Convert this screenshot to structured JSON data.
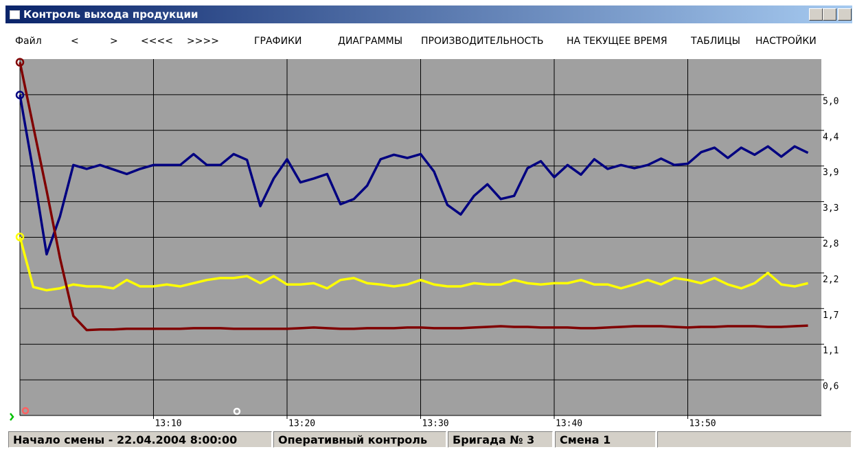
{
  "window": {
    "title": "Контроль выхода продукции"
  },
  "menu": [
    "Файл",
    "<",
    ">",
    "<<<<",
    ">>>>",
    "ГРАФИКИ",
    "ДИАГРАММЫ",
    "ПРОИЗВОДИТЕЛЬНОСТЬ",
    "НА ТЕКУЩЕЕ ВРЕМЯ",
    "ТАБЛИЦЫ",
    "НАСТРОЙКИ"
  ],
  "status": [
    "Начало смены - 22.04.2004 8:00:00",
    "Оперативный контроль",
    "Бригада № 3",
    "Смена 1"
  ],
  "chart_data": {
    "type": "line",
    "grid": true,
    "x": [
      0,
      1,
      2,
      3,
      4,
      5,
      6,
      7,
      8,
      9,
      10,
      11,
      12,
      13,
      14,
      15,
      16,
      17,
      18,
      19,
      20,
      21,
      22,
      23,
      24,
      25,
      26,
      27,
      28,
      29,
      30,
      31,
      32,
      33,
      34,
      35,
      36,
      37,
      38,
      39,
      40,
      41,
      42,
      43,
      44,
      45,
      46,
      47,
      48,
      49,
      50,
      51,
      52,
      53,
      54,
      55,
      56,
      57,
      58,
      59
    ],
    "xlim": [
      0,
      60
    ],
    "xticks": [
      {
        "value": 10,
        "label": "13:10"
      },
      {
        "value": 20,
        "label": "13:20"
      },
      {
        "value": 30,
        "label": "13:30"
      },
      {
        "value": 40,
        "label": "13:40"
      },
      {
        "value": 50,
        "label": "13:50"
      }
    ],
    "ylim": [
      0,
      5.55
    ],
    "yticks": [
      {
        "value": 0.555,
        "label": "0,6"
      },
      {
        "value": 1.11,
        "label": "1,1"
      },
      {
        "value": 1.665,
        "label": "1,7"
      },
      {
        "value": 2.22,
        "label": "2,2"
      },
      {
        "value": 2.775,
        "label": "2,8"
      },
      {
        "value": 3.33,
        "label": "3,3"
      },
      {
        "value": 3.885,
        "label": "3,9"
      },
      {
        "value": 4.44,
        "label": "4,4"
      },
      {
        "value": 4.995,
        "label": "5,0"
      }
    ],
    "series": [
      {
        "color": "#000080",
        "values": [
          4.99,
          3.8,
          2.51,
          3.1,
          3.9,
          3.84,
          3.9,
          3.83,
          3.76,
          3.84,
          3.9,
          3.9,
          3.9,
          4.07,
          3.9,
          3.9,
          4.07,
          3.98,
          3.26,
          3.69,
          3.99,
          3.63,
          3.69,
          3.76,
          3.29,
          3.37,
          3.58,
          3.99,
          4.06,
          4.01,
          4.07,
          3.8,
          3.28,
          3.13,
          3.42,
          3.6,
          3.37,
          3.42,
          3.85,
          3.96,
          3.71,
          3.9,
          3.75,
          3.99,
          3.84,
          3.9,
          3.85,
          3.9,
          4.0,
          3.9,
          3.92,
          4.1,
          4.17,
          4.01,
          4.17,
          4.06,
          4.19,
          4.03,
          4.19,
          4.09
        ]
      },
      {
        "color": "#ffff00",
        "values": [
          2.78,
          2.0,
          1.95,
          1.98,
          2.04,
          2.01,
          2.01,
          1.98,
          2.11,
          2.01,
          2.01,
          2.04,
          2.01,
          2.06,
          2.11,
          2.14,
          2.14,
          2.17,
          2.06,
          2.17,
          2.04,
          2.04,
          2.06,
          1.98,
          2.11,
          2.14,
          2.06,
          2.04,
          2.01,
          2.04,
          2.11,
          2.04,
          2.01,
          2.01,
          2.06,
          2.04,
          2.04,
          2.11,
          2.06,
          2.04,
          2.06,
          2.06,
          2.11,
          2.04,
          2.04,
          1.98,
          2.04,
          2.11,
          2.04,
          2.14,
          2.11,
          2.06,
          2.14,
          2.04,
          1.98,
          2.06,
          2.22,
          2.04,
          2.01,
          2.06
        ]
      },
      {
        "color": "#800000",
        "values": [
          5.5,
          4.5,
          3.5,
          2.45,
          1.55,
          1.33,
          1.34,
          1.34,
          1.35,
          1.35,
          1.35,
          1.35,
          1.35,
          1.36,
          1.36,
          1.36,
          1.35,
          1.35,
          1.35,
          1.35,
          1.35,
          1.36,
          1.37,
          1.36,
          1.35,
          1.35,
          1.36,
          1.36,
          1.36,
          1.37,
          1.37,
          1.36,
          1.36,
          1.36,
          1.37,
          1.38,
          1.39,
          1.38,
          1.38,
          1.37,
          1.37,
          1.37,
          1.36,
          1.36,
          1.37,
          1.38,
          1.39,
          1.39,
          1.39,
          1.38,
          1.37,
          1.38,
          1.38,
          1.39,
          1.39,
          1.39,
          1.38,
          1.38,
          1.39,
          1.4
        ]
      }
    ]
  }
}
